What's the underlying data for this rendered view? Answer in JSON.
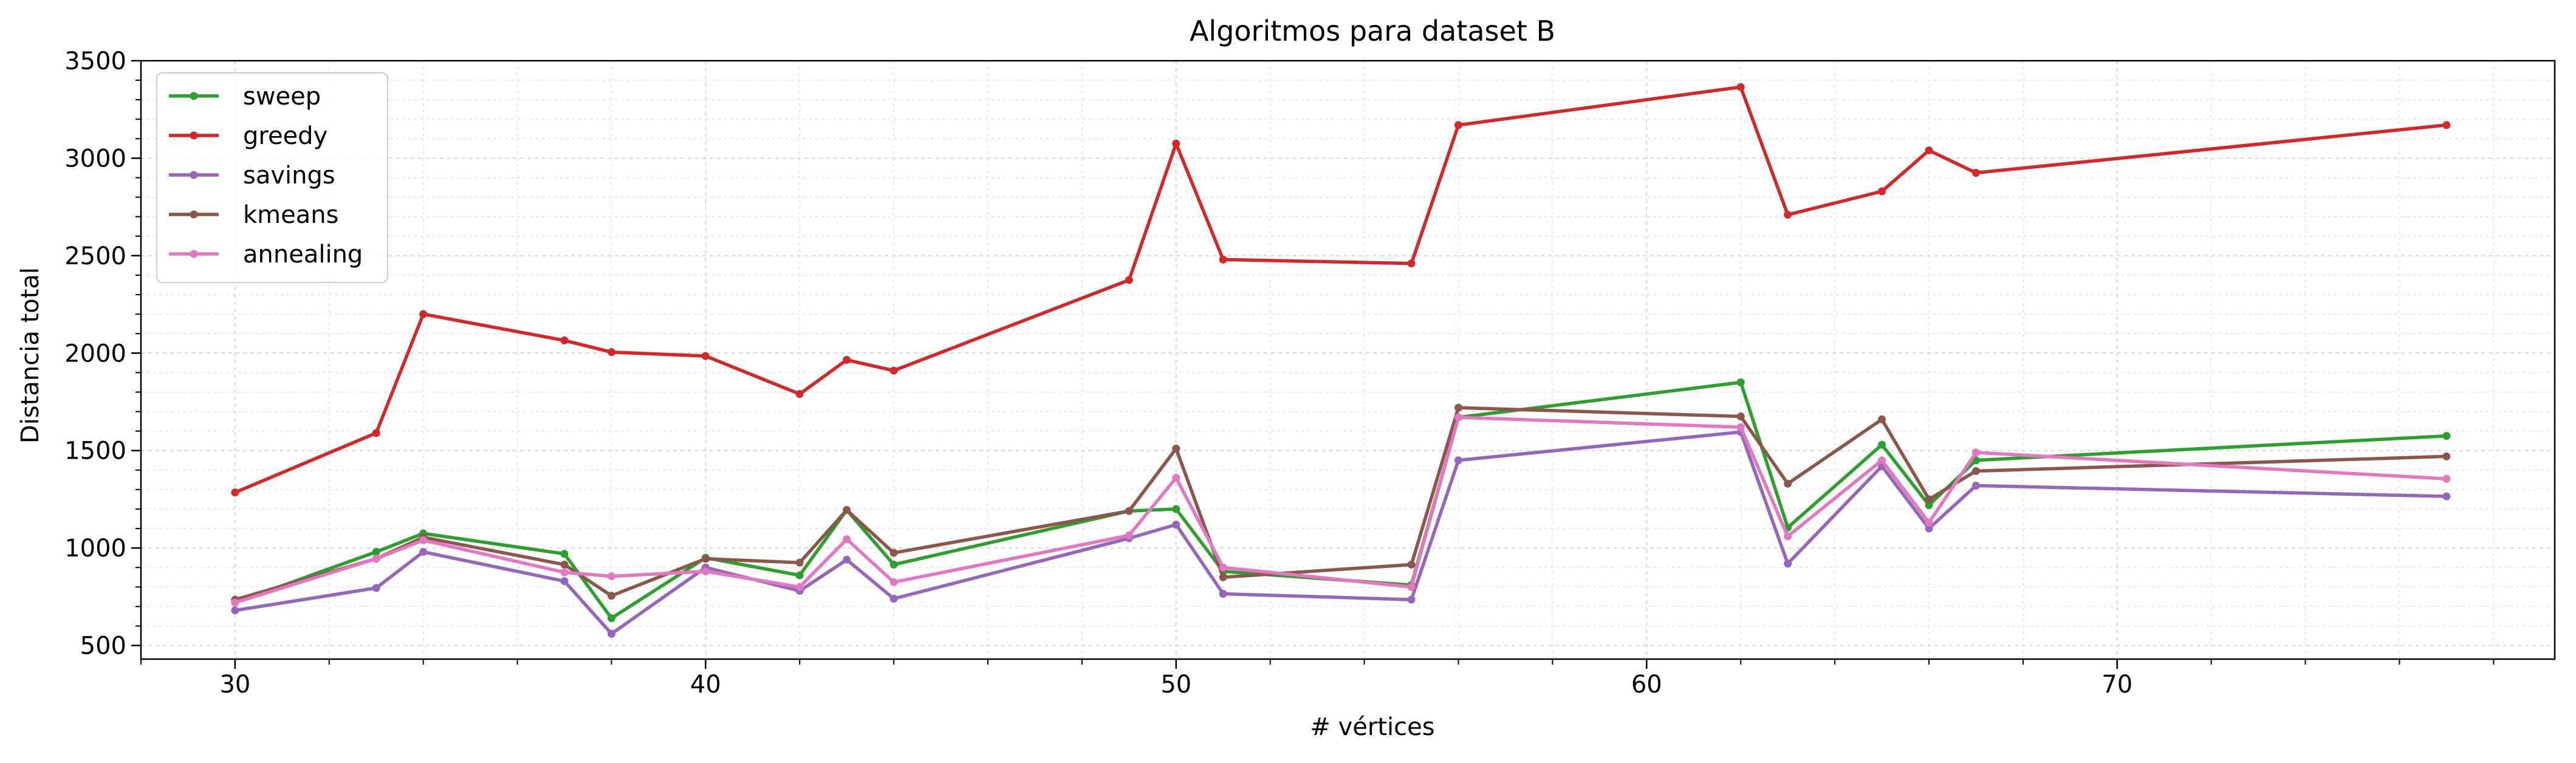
{
  "chart_data": {
    "type": "line",
    "title": "Algoritmos para dataset B",
    "xlabel": "# vértices",
    "ylabel": "Distancia total",
    "xlim": [
      28,
      79.3
    ],
    "ylim": [
      430,
      3500
    ],
    "x_ticks": [
      30,
      40,
      50,
      60,
      70
    ],
    "y_ticks": [
      500,
      1000,
      1500,
      2000,
      2500,
      3000,
      3500
    ],
    "x_minor_step": 2,
    "y_minor_step": 100,
    "grid": true,
    "legend_position": "upper-left",
    "x": [
      30,
      33,
      34,
      37,
      38,
      40,
      42,
      43,
      44,
      49,
      50,
      51,
      55,
      56,
      62,
      63,
      65,
      66,
      67,
      77
    ],
    "series": [
      {
        "name": "sweep",
        "color": "#2ca02c",
        "values": [
          720,
          980,
          1075,
          970,
          640,
          950,
          860,
          1195,
          915,
          1190,
          1200,
          880,
          810,
          1670,
          1850,
          1105,
          1530,
          1220,
          1450,
          1575
        ]
      },
      {
        "name": "greedy",
        "color": "#d62728",
        "values": [
          1285,
          1590,
          2200,
          2065,
          2005,
          1985,
          1790,
          1965,
          1910,
          2375,
          3075,
          2480,
          2460,
          3170,
          3365,
          2710,
          2830,
          3040,
          2925,
          3170
        ]
      },
      {
        "name": "savings",
        "color": "#9467bd",
        "values": [
          680,
          795,
          980,
          830,
          560,
          900,
          780,
          940,
          740,
          1050,
          1120,
          765,
          735,
          1450,
          1595,
          920,
          1420,
          1100,
          1320,
          1265
        ]
      },
      {
        "name": "kmeans",
        "color": "#8c564b",
        "values": [
          735,
          945,
          1055,
          915,
          755,
          945,
          925,
          1195,
          975,
          1190,
          1510,
          850,
          915,
          1720,
          1675,
          1330,
          1660,
          1250,
          1395,
          1470
        ]
      },
      {
        "name": "annealing",
        "color": "#e377c2",
        "values": [
          720,
          945,
          1040,
          875,
          855,
          880,
          800,
          1045,
          825,
          1065,
          1360,
          900,
          800,
          1670,
          1620,
          1060,
          1450,
          1130,
          1490,
          1355
        ]
      }
    ]
  }
}
